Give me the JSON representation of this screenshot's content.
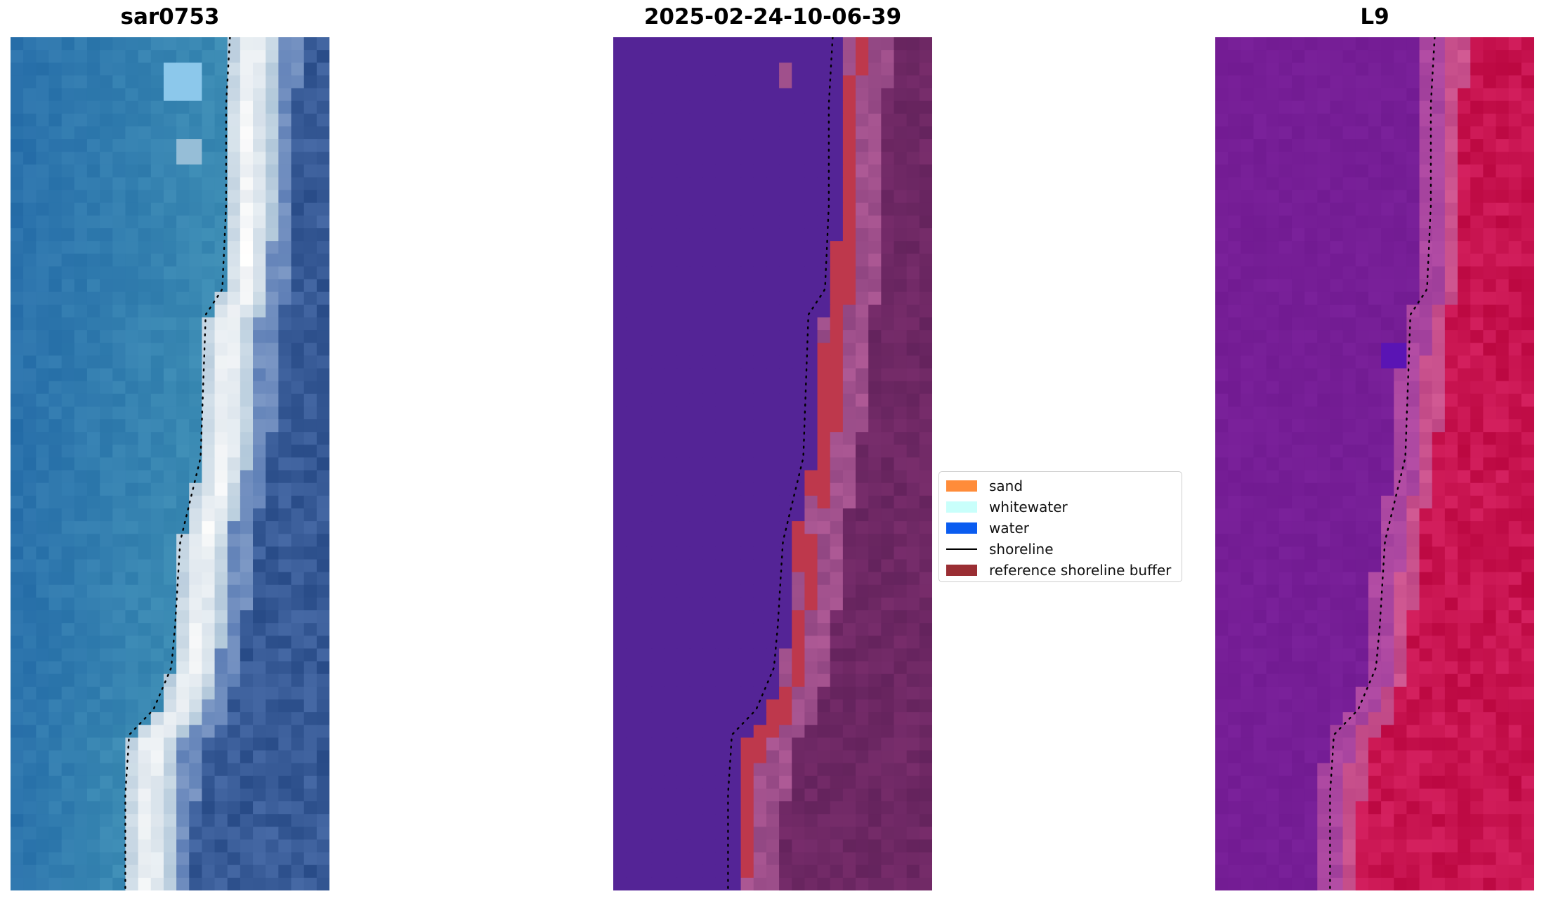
{
  "titles": {
    "left": "sar0753",
    "center": "2025-02-24-10-06-39",
    "right": "L9"
  },
  "legend": [
    {
      "label": "sand",
      "color": "#ff8c3a",
      "kind": "patch"
    },
    {
      "label": "whitewater",
      "color": "#c9fffb",
      "kind": "patch"
    },
    {
      "label": "water",
      "color": "#0a5cf0",
      "kind": "patch"
    },
    {
      "label": "shoreline",
      "color": "#000000",
      "kind": "line"
    },
    {
      "label": "reference shoreline buffer",
      "color": "#9a2e33",
      "kind": "patch"
    }
  ]
}
